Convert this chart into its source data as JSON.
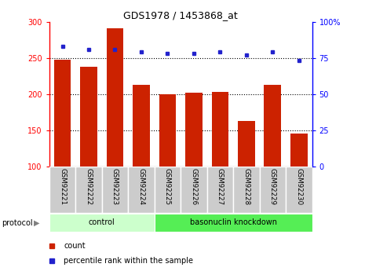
{
  "title": "GDS1978 / 1453868_at",
  "categories": [
    "GSM92221",
    "GSM92222",
    "GSM92223",
    "GSM92224",
    "GSM92225",
    "GSM92226",
    "GSM92227",
    "GSM92228",
    "GSM92229",
    "GSM92230"
  ],
  "bar_values": [
    248,
    238,
    291,
    213,
    200,
    202,
    203,
    163,
    213,
    146
  ],
  "percentile_values": [
    83,
    81,
    81,
    79,
    78,
    78,
    79,
    77,
    79,
    73
  ],
  "ylim_left": [
    100,
    300
  ],
  "ylim_right": [
    0,
    100
  ],
  "yticks_left": [
    100,
    150,
    200,
    250,
    300
  ],
  "yticks_right": [
    0,
    25,
    50,
    75,
    100
  ],
  "bar_color": "#cc2200",
  "dot_color": "#2222cc",
  "bar_bottom": 100,
  "control_color": "#ccffcc",
  "knockdown_color": "#55ee55",
  "legend_count_color": "#cc2200",
  "legend_pct_color": "#2222cc",
  "tick_label_bg": "#cccccc",
  "grid_dotted_color": "black",
  "title_fontsize": 9,
  "tick_fontsize": 7,
  "label_fontsize": 7.5
}
